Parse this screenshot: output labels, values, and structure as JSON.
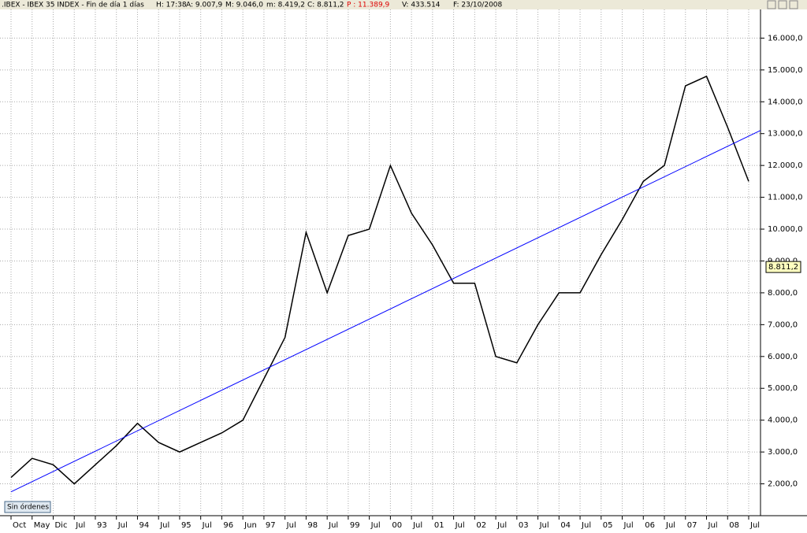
{
  "header": {
    "title": ".IBEX - IBEX 35 INDEX - Fin de día 1 días",
    "fields": [
      "H: 17:38",
      "A: 9.007,9",
      "M: 9.046,0",
      "m: 8.419,2",
      "C: 8.811,2",
      "P : 11.389,9",
      "V: 433.514",
      "F: 23/10/2008"
    ]
  },
  "button": "Sin órdenes",
  "chart_data": {
    "type": "line",
    "categories": [
      "Oct",
      "May",
      "Dic",
      "Jul",
      "93",
      "Jul",
      "94",
      "Jul",
      "95",
      "Jul",
      "96",
      "Jun",
      "97",
      "Jul",
      "98",
      "Jul",
      "99",
      "Jul",
      "00",
      "Jul",
      "01",
      "Jul",
      "02",
      "Jul",
      "03",
      "Jul",
      "04",
      "Jul",
      "05",
      "Jul",
      "06",
      "Jul",
      "07",
      "Jul",
      "08",
      "Jul"
    ],
    "series": [
      {
        "name": "IBEX 35",
        "color": "#000000",
        "values": [
          2200,
          2800,
          2600,
          2000,
          2600,
          3200,
          3900,
          3300,
          3000,
          3300,
          3600,
          4000,
          5300,
          6600,
          9900,
          8000,
          9800,
          10000,
          12000,
          10500,
          9500,
          8300,
          8300,
          6000,
          5800,
          7000,
          8000,
          8000,
          9200,
          10300,
          11500,
          12000,
          14500,
          14800,
          13200,
          11500
        ]
      }
    ],
    "trendline": {
      "color": "#0000ff",
      "values": [
        1750,
        13100
      ]
    },
    "last_value": 8811.2,
    "last_label": "8.811,2",
    "ylim": [
      1000,
      16900
    ],
    "yticks": [
      {
        "value": 2000,
        "label": "2.000,0"
      },
      {
        "value": 3000,
        "label": "3.000,0"
      },
      {
        "value": 4000,
        "label": "4.000,0"
      },
      {
        "value": 5000,
        "label": "5.000,0"
      },
      {
        "value": 6000,
        "label": "6.000,0"
      },
      {
        "value": 7000,
        "label": "7.000,0"
      },
      {
        "value": 8000,
        "label": "8.000,0"
      },
      {
        "value": 9000,
        "label": "9.000,0"
      },
      {
        "value": 10000,
        "label": "10.000,0"
      },
      {
        "value": 11000,
        "label": "11.000,0"
      },
      {
        "value": 12000,
        "label": "12.000,0"
      },
      {
        "value": 13000,
        "label": "13.000,0"
      },
      {
        "value": 14000,
        "label": "14.000,0"
      },
      {
        "value": 15000,
        "label": "15.000,0"
      },
      {
        "value": 16000,
        "label": "16.000,0"
      }
    ],
    "grid": true
  }
}
